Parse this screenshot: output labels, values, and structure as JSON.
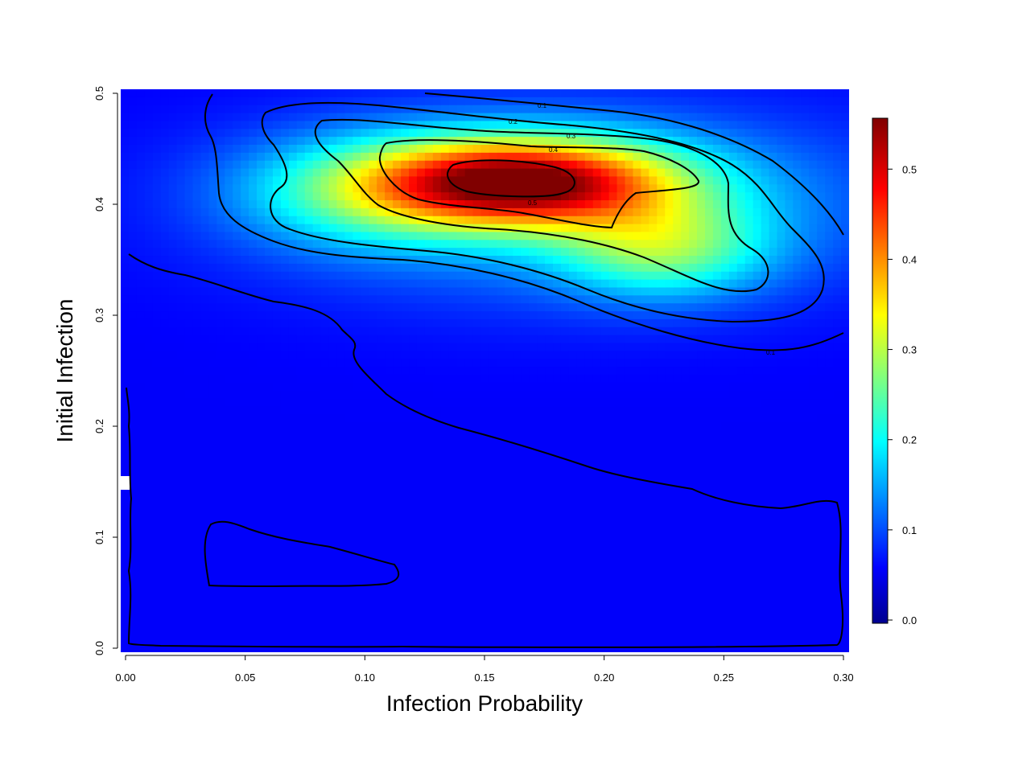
{
  "chart_data": {
    "type": "heatmap",
    "title": "",
    "xlabel": "Infection Probability",
    "ylabel": "Initial Infection",
    "xlim": [
      0.0,
      0.3
    ],
    "ylim": [
      0.0,
      0.5
    ],
    "x_ticks": [
      "0.00",
      "0.05",
      "0.10",
      "0.15",
      "0.20",
      "0.25",
      "0.30"
    ],
    "y_ticks": [
      "0.0",
      "0.1",
      "0.2",
      "0.3",
      "0.4",
      "0.5"
    ],
    "colorbar": {
      "range": [
        0.0,
        0.56
      ],
      "ticks": [
        "0.0",
        "0.1",
        "0.2",
        "0.3",
        "0.4",
        "0.5"
      ],
      "colormap": "jet"
    },
    "contour_levels": [
      "0.1",
      "0.2",
      "0.3",
      "0.4",
      "0.5"
    ],
    "peak": {
      "x": 0.16,
      "y": 0.42,
      "value": 0.56
    },
    "grid": false,
    "legend": "colorbar-right"
  }
}
